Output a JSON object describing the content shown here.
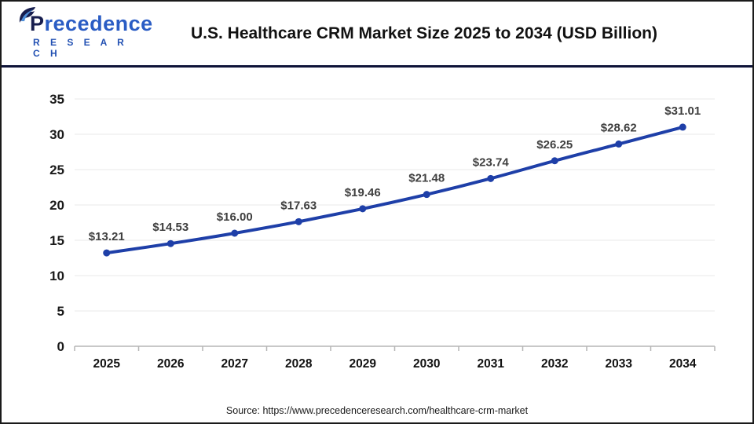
{
  "header": {
    "logo": {
      "brand_first_letter": "P",
      "brand_rest": "recedence",
      "tagline": "R E S E A R C H"
    },
    "title": "U.S. Healthcare CRM Market Size 2025 to 2034 (USD Billion)"
  },
  "footer": {
    "source": "Source: https://www.precedenceresearch.com/healthcare-crm-market"
  },
  "colors": {
    "line": "#1e3fa8",
    "marker": "#1e3fa8",
    "data_label": "#3f3f3f",
    "grid": "#eaeaea",
    "axis": "#b5b5b5",
    "divider": "#0e1338",
    "logo_navy": "#171d4e",
    "logo_blue": "#2a5cc4",
    "logo_leaf_light": "#4f8fd9"
  },
  "chart_data": {
    "type": "line",
    "title": "U.S. Healthcare CRM Market Size 2025 to 2034 (USD Billion)",
    "categories": [
      "2025",
      "2026",
      "2027",
      "2028",
      "2029",
      "2030",
      "2031",
      "2032",
      "2033",
      "2034"
    ],
    "values": [
      13.21,
      14.53,
      16.0,
      17.63,
      19.46,
      21.48,
      23.74,
      26.25,
      28.62,
      31.01
    ],
    "value_labels": [
      "$13.21",
      "$14.53",
      "$16.00",
      "$17.63",
      "$19.46",
      "$21.48",
      "$23.74",
      "$26.25",
      "$28.62",
      "$31.01"
    ],
    "xlabel": "",
    "ylabel": "",
    "ylim": [
      0,
      35
    ],
    "ytick_step": 5,
    "yticks": [
      0,
      5,
      10,
      15,
      20,
      25,
      30,
      35
    ],
    "grid": true,
    "legend": false,
    "marker": "circle",
    "smooth": true
  }
}
